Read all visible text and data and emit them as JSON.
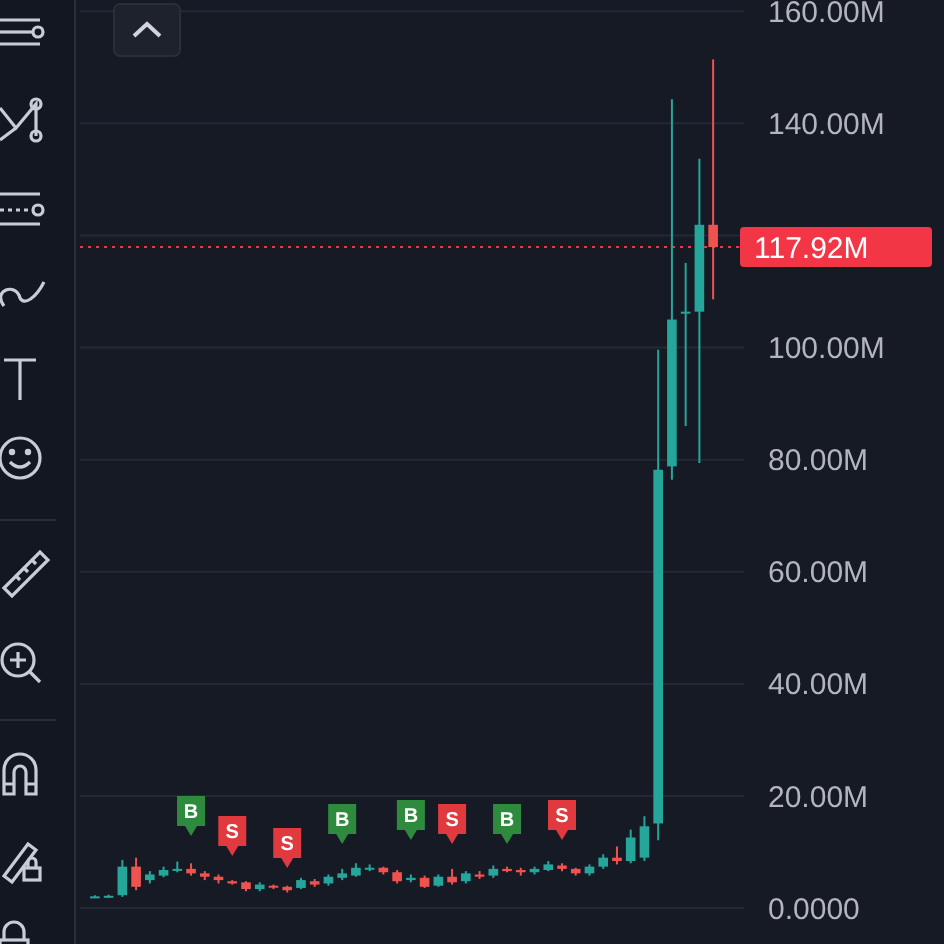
{
  "chart_data": {
    "type": "candlestick",
    "categories": [
      null,
      null,
      null,
      null,
      null,
      null,
      null,
      null,
      null,
      null,
      null,
      null,
      null,
      null,
      null,
      null,
      null,
      null,
      null,
      null,
      null,
      null,
      null,
      null,
      null,
      null,
      null,
      null,
      null,
      null,
      null,
      null,
      null,
      null,
      null,
      null,
      null,
      null,
      null,
      null,
      null,
      null,
      null,
      null,
      null,
      null
    ],
    "ohlc": [
      [
        2.0,
        2.3,
        1.8,
        2.1
      ],
      [
        2.1,
        2.4,
        1.9,
        2.2
      ],
      [
        2.3,
        8.6,
        2.0,
        7.4
      ],
      [
        7.4,
        9.0,
        3.2,
        3.8
      ],
      [
        5.0,
        6.6,
        4.4,
        6.0
      ],
      [
        5.8,
        7.4,
        5.5,
        6.8
      ],
      [
        6.8,
        8.3,
        6.4,
        7.0
      ],
      [
        7.0,
        8.0,
        5.8,
        6.2
      ],
      [
        6.2,
        6.6,
        5.0,
        5.6
      ],
      [
        5.6,
        6.0,
        4.4,
        5.0
      ],
      [
        4.8,
        5.0,
        4.2,
        4.4
      ],
      [
        4.6,
        4.8,
        3.0,
        3.4
      ],
      [
        3.4,
        4.6,
        3.0,
        4.2
      ],
      [
        4.0,
        4.2,
        3.4,
        3.8
      ],
      [
        3.8,
        4.0,
        2.8,
        3.2
      ],
      [
        3.6,
        5.4,
        3.4,
        5.0
      ],
      [
        4.8,
        5.2,
        3.8,
        4.2
      ],
      [
        4.4,
        6.0,
        4.0,
        5.6
      ],
      [
        5.4,
        7.0,
        5.0,
        6.2
      ],
      [
        5.8,
        8.0,
        5.6,
        7.2
      ],
      [
        7.0,
        7.8,
        6.6,
        7.2
      ],
      [
        7.2,
        7.4,
        6.0,
        6.4
      ],
      [
        6.4,
        6.8,
        4.4,
        4.8
      ],
      [
        5.0,
        6.0,
        4.6,
        5.4
      ],
      [
        5.4,
        5.8,
        3.6,
        3.8
      ],
      [
        4.0,
        6.0,
        3.8,
        5.6
      ],
      [
        5.6,
        7.0,
        4.2,
        4.6
      ],
      [
        4.8,
        6.6,
        4.4,
        6.2
      ],
      [
        6.0,
        6.6,
        5.2,
        5.6
      ],
      [
        5.8,
        7.6,
        5.4,
        7.0
      ],
      [
        7.0,
        7.4,
        6.4,
        6.6
      ],
      [
        6.8,
        7.2,
        5.8,
        6.4
      ],
      [
        6.4,
        7.4,
        6.0,
        7.0
      ],
      [
        6.8,
        8.4,
        6.6,
        7.8
      ],
      [
        7.6,
        8.0,
        6.6,
        7.0
      ],
      [
        7.0,
        7.2,
        5.8,
        6.2
      ],
      [
        6.2,
        7.8,
        5.8,
        7.4
      ],
      [
        7.4,
        9.6,
        7.0,
        9.0
      ],
      [
        9.0,
        11.0,
        7.8,
        8.4
      ],
      [
        8.4,
        14.0,
        8.0,
        12.6
      ],
      [
        9.0,
        16.4,
        8.4,
        14.6
      ],
      [
        15.1,
        99.6,
        12.1,
        78.2
      ],
      [
        78.8,
        144.3,
        76.4,
        105.0
      ],
      [
        106.1,
        115.1,
        86.0,
        106.4
      ],
      [
        106.4,
        133.7,
        79.4,
        121.9
      ],
      [
        121.9,
        151.4,
        108.6,
        117.92
      ]
    ],
    "colors": [
      "#26a69a",
      "#26a69a",
      "#26a69a",
      "#ef5350",
      "#26a69a",
      "#26a69a",
      "#26a69a",
      "#ef5350",
      "#ef5350",
      "#ef5350",
      "#ef5350",
      "#ef5350",
      "#26a69a",
      "#ef5350",
      "#ef5350",
      "#26a69a",
      "#ef5350",
      "#26a69a",
      "#26a69a",
      "#26a69a",
      "#26a69a",
      "#ef5350",
      "#ef5350",
      "#26a69a",
      "#ef5350",
      "#26a69a",
      "#ef5350",
      "#26a69a",
      "#ef5350",
      "#26a69a",
      "#ef5350",
      "#ef5350",
      "#26a69a",
      "#26a69a",
      "#ef5350",
      "#ef5350",
      "#26a69a",
      "#26a69a",
      "#ef5350",
      "#26a69a",
      "#26a69a",
      "#26a69a",
      "#26a69a",
      "#26a69a",
      "#26a69a",
      "#ef5350"
    ],
    "ylim": [
      -6.4,
      162
    ],
    "yticks": [
      {
        "value": 0,
        "label": "0.0000"
      },
      {
        "value": 20,
        "label": "20.00M"
      },
      {
        "value": 40,
        "label": "40.00M"
      },
      {
        "value": 60,
        "label": "60.00M"
      },
      {
        "value": 80,
        "label": "80.00M"
      },
      {
        "value": 100,
        "label": "100.00M"
      },
      {
        "value": 120,
        "label": null
      },
      {
        "value": 140,
        "label": "140.00M"
      },
      {
        "value": 160,
        "label": "160.00M"
      }
    ],
    "grid": "y",
    "ref_lines": [
      {
        "axis": "y",
        "value": 117.92,
        "label": "117.92M",
        "color": "#f23645",
        "line_style": "dotted"
      }
    ],
    "annotations": [
      "B",
      "S",
      "S",
      "B",
      "B",
      "S",
      "B",
      "S"
    ]
  }
}
